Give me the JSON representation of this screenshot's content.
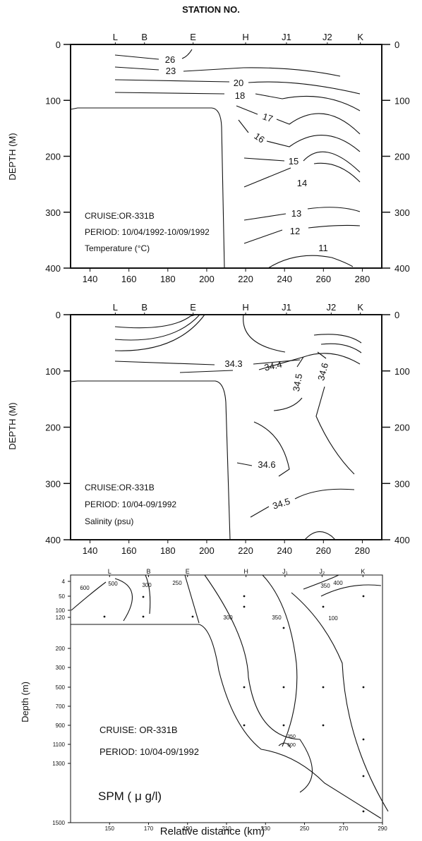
{
  "header": {
    "station_label": "STATION NO."
  },
  "chart_data": [
    {
      "type": "contour",
      "xlim": [
        130,
        290
      ],
      "ylim": [
        400,
        0
      ],
      "x_ticks": [
        140,
        160,
        180,
        200,
        220,
        240,
        260,
        280
      ],
      "y_ticks": [
        0,
        100,
        200,
        300,
        400
      ],
      "ylabel": "DEPTH (M)",
      "stations": [
        {
          "name": "L",
          "x": 153
        },
        {
          "name": "B",
          "x": 168
        },
        {
          "name": "E",
          "x": 193
        },
        {
          "name": "H",
          "x": 220
        },
        {
          "name": "J1",
          "x": 241
        },
        {
          "name": "J2",
          "x": 262
        },
        {
          "name": "K",
          "x": 279
        }
      ],
      "annotation_lines": [
        "CRUISE:OR-331B",
        "PERIOD: 10/04/1992-10/09/1992",
        "Temperature (°C)"
      ],
      "contour_labels": [
        "26",
        "23",
        "20",
        "18",
        "17",
        "16",
        "15",
        "14",
        "13",
        "12",
        "11"
      ]
    },
    {
      "type": "contour",
      "xlim": [
        130,
        290
      ],
      "ylim": [
        400,
        0
      ],
      "x_ticks": [
        140,
        160,
        180,
        200,
        220,
        240,
        260,
        280
      ],
      "y_ticks": [
        0,
        100,
        200,
        300,
        400
      ],
      "ylabel": "DEPTH (M)",
      "stations": [
        {
          "name": "L",
          "x": 153
        },
        {
          "name": "B",
          "x": 168
        },
        {
          "name": "E",
          "x": 193
        },
        {
          "name": "H",
          "x": 220
        },
        {
          "name": "J1",
          "x": 241
        },
        {
          "name": "J2",
          "x": 264
        },
        {
          "name": "K",
          "x": 279
        }
      ],
      "annotation_lines": [
        "CRUISE:OR-331B",
        "PERIOD: 10/04-09/1992",
        "Salinity (psu)"
      ],
      "contour_labels": [
        "34.3",
        "34.4",
        "34.5",
        "34.6",
        "34.6",
        "34.5"
      ]
    },
    {
      "type": "contour",
      "xlim": [
        130,
        290
      ],
      "x_ticks": [
        150,
        170,
        190,
        210,
        230,
        250,
        270,
        290
      ],
      "y_ticks": [
        4,
        50,
        100,
        120,
        200,
        300,
        500,
        700,
        900,
        1100,
        1300,
        1500
      ],
      "ylabel": "Depth (m)",
      "xlabel": "Relative distance (km)",
      "stations": [
        {
          "name": "L",
          "x": 150
        },
        {
          "name": "B",
          "x": 170
        },
        {
          "name": "E",
          "x": 190
        },
        {
          "name": "H",
          "x": 220
        },
        {
          "name": "J₁",
          "x": 240
        },
        {
          "name": "J₂",
          "x": 259
        },
        {
          "name": "K",
          "x": 280
        }
      ],
      "annotation_lines": [
        "CRUISE: OR-331B",
        "PERIOD: 10/04-09/1992",
        "SPM ( μ g/l)"
      ],
      "contour_labels": [
        "600",
        "500",
        "300",
        "250",
        "300",
        "350",
        "350",
        "400",
        "100",
        "350",
        "500"
      ]
    }
  ]
}
